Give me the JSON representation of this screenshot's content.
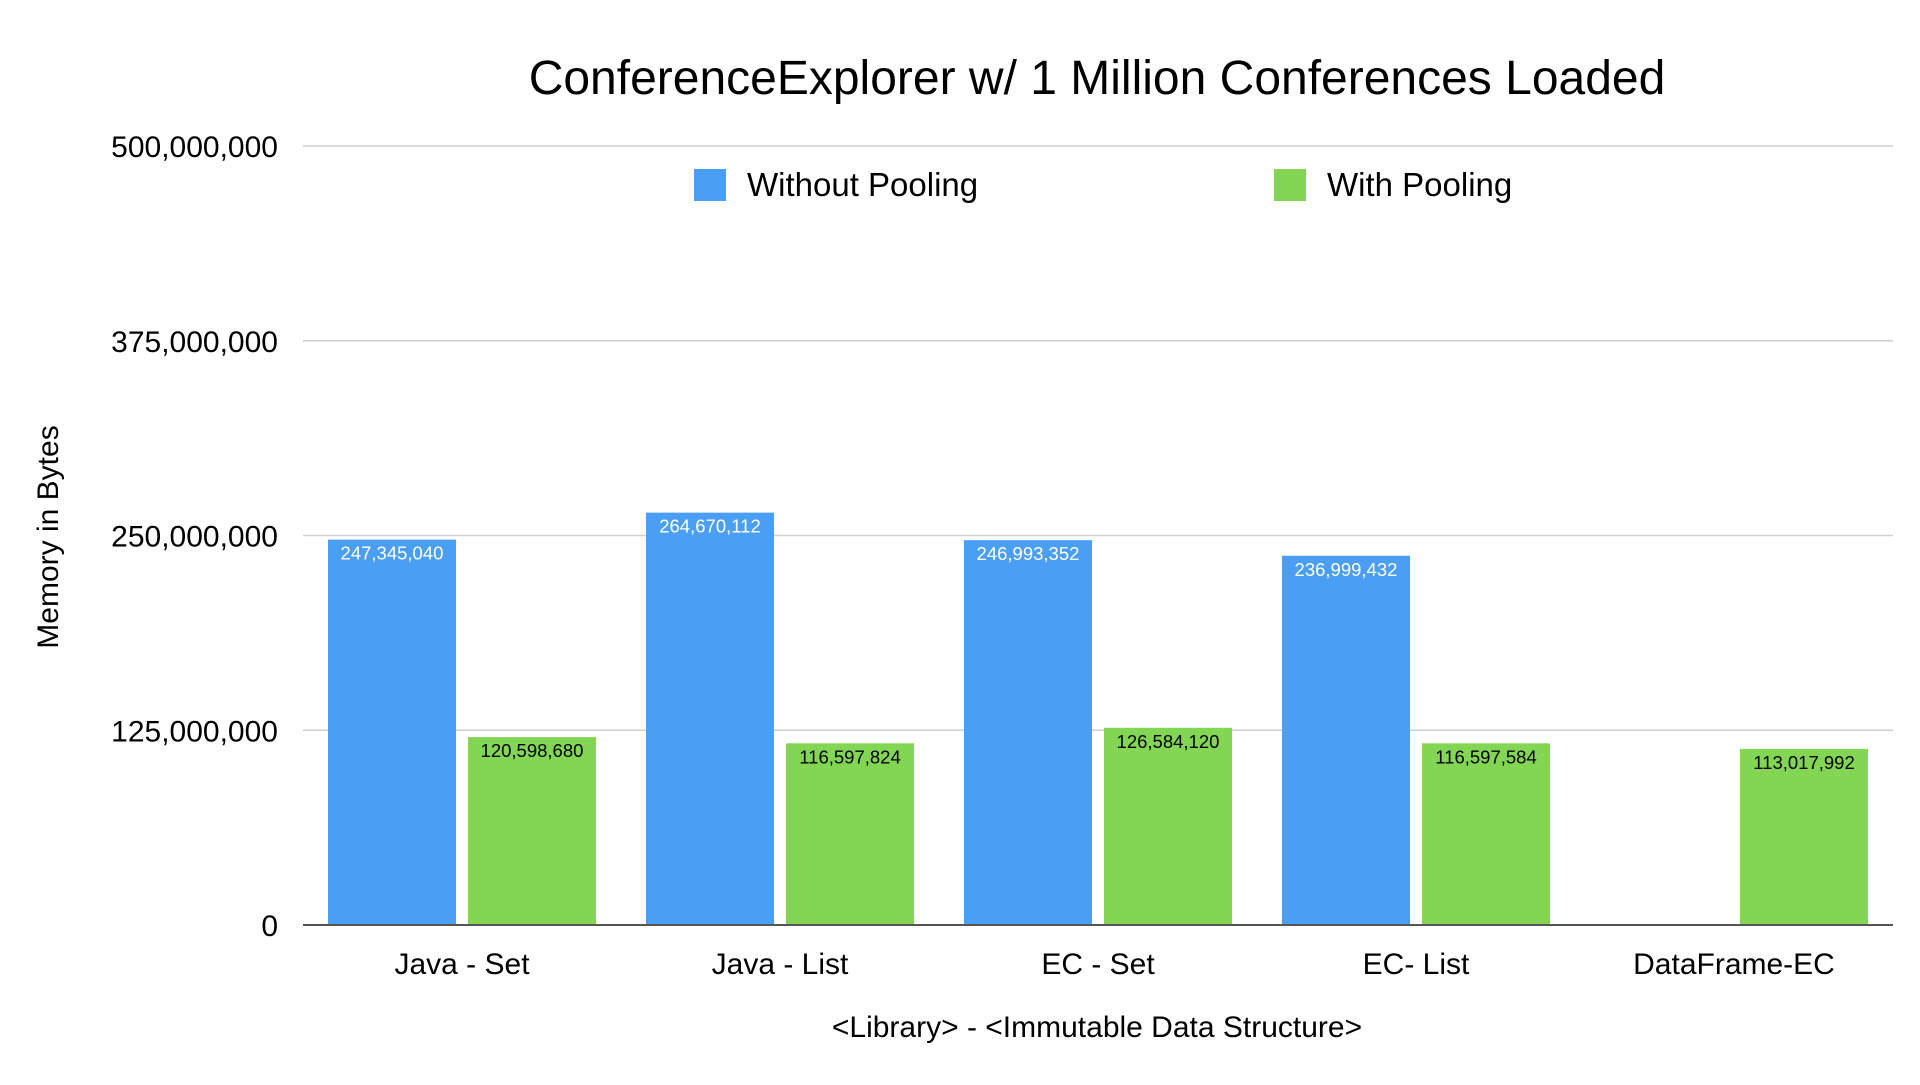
{
  "chart_data": {
    "type": "bar",
    "title": "ConferenceExplorer w/ 1 Million Conferences Loaded",
    "xlabel": "<Library> - <Immutable Data Structure>",
    "ylabel": "Memory in Bytes",
    "ylim": [
      0,
      500000000
    ],
    "y_ticks": [
      0,
      125000000,
      250000000,
      375000000,
      500000000
    ],
    "y_tick_labels": [
      "0",
      "125,000,000",
      "250,000,000",
      "375,000,000",
      "500,000,000"
    ],
    "grid": true,
    "legend_position": "top-center",
    "categories": [
      "Java - Set",
      "Java - List",
      "EC - Set",
      "EC- List",
      "DataFrame-EC"
    ],
    "series": [
      {
        "name": "Without Pooling",
        "color": "#4a9ff5",
        "label_color": "#ffffff",
        "values": [
          247345040,
          264670112,
          246993352,
          236999432,
          null
        ],
        "labels": [
          "247,345,040",
          "264,670,112",
          "246,993,352",
          "236,999,432",
          ""
        ]
      },
      {
        "name": "With Pooling",
        "color": "#82d653",
        "label_color": "#000000",
        "values": [
          120598680,
          116597824,
          126584120,
          116597584,
          113017992
        ],
        "labels": [
          "120,598,680",
          "116,597,824",
          "126,584,120",
          "116,597,584",
          "113,017,992"
        ]
      }
    ]
  }
}
